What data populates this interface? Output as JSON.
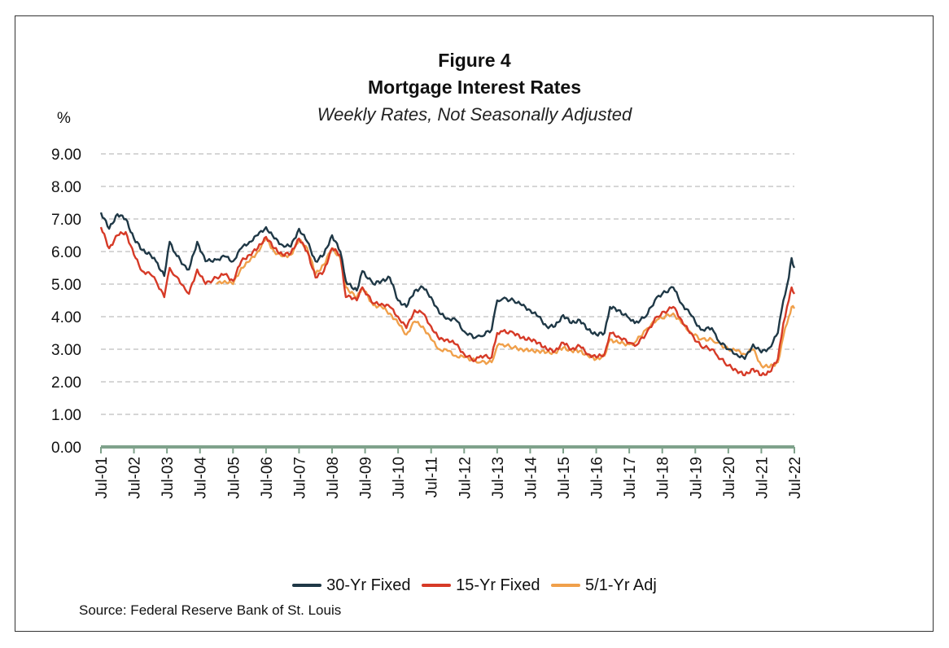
{
  "figure": {
    "number": "Figure 4",
    "title": "Mortgage Interest Rates",
    "subtitle": "Weekly Rates, Not Seasonally Adjusted",
    "unit": "%",
    "source": "Source: Federal Reserve Bank of St. Louis"
  },
  "colors": {
    "thirty": "#1f3846",
    "fifteen": "#d63a27",
    "arm": "#f0a04b",
    "grid": "#bdbdbd",
    "axis": "#7fa28b"
  },
  "chart_data": {
    "type": "line",
    "ylim": [
      0,
      9
    ],
    "yticks": [
      "0.00",
      "1.00",
      "2.00",
      "3.00",
      "4.00",
      "5.00",
      "6.00",
      "7.00",
      "8.00",
      "9.00"
    ],
    "xticks": [
      "Jul-01",
      "Jul-02",
      "Jul-03",
      "Jul-04",
      "Jul-05",
      "Jul-06",
      "Jul-07",
      "Jul-08",
      "Jul-09",
      "Jul-10",
      "Jul-11",
      "Jul-12",
      "Jul-13",
      "Jul-14",
      "Jul-15",
      "Jul-16",
      "Jul-17",
      "Jul-18",
      "Jul-19",
      "Jul-20",
      "Jul-21",
      "Jul-22"
    ],
    "grid": true,
    "legend_position": "bottom",
    "series": [
      {
        "name": "30-Yr Fixed",
        "color_key": "thirty",
        "x": [
          "2001-07",
          "2001-10",
          "2002-01",
          "2002-04",
          "2002-07",
          "2002-10",
          "2003-01",
          "2003-03",
          "2003-06",
          "2003-08",
          "2003-10",
          "2004-01",
          "2004-03",
          "2004-06",
          "2004-09",
          "2005-01",
          "2005-04",
          "2005-07",
          "2005-10",
          "2006-01",
          "2006-04",
          "2006-07",
          "2006-10",
          "2007-01",
          "2007-04",
          "2007-07",
          "2007-10",
          "2008-01",
          "2008-04",
          "2008-07",
          "2008-10",
          "2008-12",
          "2009-01",
          "2009-04",
          "2009-06",
          "2009-10",
          "2010-01",
          "2010-04",
          "2010-07",
          "2010-10",
          "2011-01",
          "2011-04",
          "2011-07",
          "2011-10",
          "2012-01",
          "2012-04",
          "2012-07",
          "2012-11",
          "2013-01",
          "2013-05",
          "2013-07",
          "2013-09",
          "2014-01",
          "2014-04",
          "2014-07",
          "2014-10",
          "2015-01",
          "2015-04",
          "2015-07",
          "2015-10",
          "2016-01",
          "2016-04",
          "2016-07",
          "2016-10",
          "2016-12",
          "2017-03",
          "2017-07",
          "2017-09",
          "2018-01",
          "2018-05",
          "2018-11",
          "2019-02",
          "2019-05",
          "2019-09",
          "2020-01",
          "2020-03",
          "2020-07",
          "2020-10",
          "2021-01",
          "2021-04",
          "2021-07",
          "2021-10",
          "2022-01",
          "2022-03",
          "2022-05",
          "2022-06",
          "2022-07"
        ],
        "values": [
          7.2,
          6.7,
          7.15,
          7.0,
          6.4,
          6.05,
          5.9,
          5.7,
          5.25,
          6.3,
          5.95,
          5.6,
          5.45,
          6.3,
          5.7,
          5.75,
          5.85,
          5.7,
          6.1,
          6.3,
          6.5,
          6.75,
          6.4,
          6.2,
          6.15,
          6.7,
          6.3,
          5.7,
          5.9,
          6.5,
          6.0,
          5.1,
          5.0,
          4.8,
          5.4,
          5.0,
          5.1,
          5.2,
          4.5,
          4.3,
          4.8,
          4.9,
          4.6,
          4.1,
          3.95,
          3.9,
          3.55,
          3.35,
          3.4,
          3.6,
          4.5,
          4.55,
          4.5,
          4.35,
          4.2,
          4.0,
          3.7,
          3.7,
          4.05,
          3.8,
          3.9,
          3.6,
          3.45,
          3.5,
          4.3,
          4.2,
          3.95,
          3.8,
          4.0,
          4.6,
          4.9,
          4.4,
          4.1,
          3.6,
          3.65,
          3.3,
          3.0,
          2.85,
          2.7,
          3.15,
          2.9,
          3.05,
          3.5,
          4.5,
          5.2,
          5.8,
          5.5
        ]
      },
      {
        "name": "15-Yr Fixed",
        "color_key": "fifteen",
        "x": [
          "2001-07",
          "2001-10",
          "2002-01",
          "2002-04",
          "2002-07",
          "2002-10",
          "2003-01",
          "2003-03",
          "2003-06",
          "2003-08",
          "2003-10",
          "2004-01",
          "2004-03",
          "2004-06",
          "2004-09",
          "2005-01",
          "2005-04",
          "2005-07",
          "2005-10",
          "2006-01",
          "2006-04",
          "2006-07",
          "2006-10",
          "2007-01",
          "2007-04",
          "2007-07",
          "2007-10",
          "2008-01",
          "2008-04",
          "2008-07",
          "2008-10",
          "2008-12",
          "2009-01",
          "2009-04",
          "2009-06",
          "2009-10",
          "2010-01",
          "2010-04",
          "2010-07",
          "2010-10",
          "2011-01",
          "2011-04",
          "2011-07",
          "2011-10",
          "2012-01",
          "2012-04",
          "2012-07",
          "2012-11",
          "2013-01",
          "2013-05",
          "2013-07",
          "2013-09",
          "2014-01",
          "2014-04",
          "2014-07",
          "2014-10",
          "2015-01",
          "2015-04",
          "2015-07",
          "2015-10",
          "2016-01",
          "2016-04",
          "2016-07",
          "2016-10",
          "2016-12",
          "2017-03",
          "2017-07",
          "2017-09",
          "2018-01",
          "2018-05",
          "2018-11",
          "2019-02",
          "2019-05",
          "2019-09",
          "2020-01",
          "2020-03",
          "2020-07",
          "2020-10",
          "2021-01",
          "2021-04",
          "2021-07",
          "2021-10",
          "2022-01",
          "2022-03",
          "2022-05",
          "2022-06",
          "2022-07"
        ],
        "values": [
          6.75,
          6.1,
          6.5,
          6.6,
          5.9,
          5.4,
          5.3,
          5.1,
          4.6,
          5.5,
          5.25,
          4.95,
          4.7,
          5.45,
          5.0,
          5.2,
          5.3,
          5.1,
          5.7,
          5.9,
          6.1,
          6.45,
          6.1,
          5.9,
          5.95,
          6.4,
          6.0,
          5.2,
          5.4,
          6.1,
          5.9,
          4.6,
          4.65,
          4.5,
          4.9,
          4.4,
          4.4,
          4.3,
          4.0,
          3.65,
          4.2,
          4.1,
          3.7,
          3.3,
          3.3,
          3.15,
          2.85,
          2.65,
          2.8,
          2.75,
          3.5,
          3.55,
          3.5,
          3.35,
          3.3,
          3.2,
          3.0,
          2.95,
          3.2,
          3.0,
          3.1,
          2.85,
          2.75,
          2.85,
          3.5,
          3.4,
          3.2,
          3.1,
          3.45,
          4.0,
          4.3,
          3.9,
          3.5,
          3.1,
          3.0,
          2.8,
          2.5,
          2.35,
          2.2,
          2.4,
          2.2,
          2.3,
          2.7,
          3.8,
          4.5,
          4.9,
          4.7
        ]
      },
      {
        "name": "5/1-Yr Adj",
        "color_key": "arm",
        "x": [
          "2005-01",
          "2005-04",
          "2005-07",
          "2005-10",
          "2006-01",
          "2006-04",
          "2006-07",
          "2006-10",
          "2007-01",
          "2007-04",
          "2007-07",
          "2007-10",
          "2008-01",
          "2008-04",
          "2008-07",
          "2008-10",
          "2008-12",
          "2009-01",
          "2009-04",
          "2009-06",
          "2009-10",
          "2010-01",
          "2010-04",
          "2010-07",
          "2010-10",
          "2011-01",
          "2011-04",
          "2011-07",
          "2011-10",
          "2012-01",
          "2012-04",
          "2012-07",
          "2012-11",
          "2013-01",
          "2013-05",
          "2013-07",
          "2013-09",
          "2014-01",
          "2014-04",
          "2014-07",
          "2014-10",
          "2015-01",
          "2015-04",
          "2015-07",
          "2015-10",
          "2016-01",
          "2016-04",
          "2016-07",
          "2016-10",
          "2016-12",
          "2017-03",
          "2017-07",
          "2017-09",
          "2018-01",
          "2018-05",
          "2018-11",
          "2019-02",
          "2019-05",
          "2019-09",
          "2020-01",
          "2020-03",
          "2020-07",
          "2020-10",
          "2021-01",
          "2021-04",
          "2021-07",
          "2021-10",
          "2022-01",
          "2022-03",
          "2022-05",
          "2022-06",
          "2022-07"
        ],
        "values": [
          5.0,
          5.1,
          5.0,
          5.5,
          5.7,
          6.0,
          6.4,
          6.0,
          5.85,
          5.9,
          6.35,
          6.1,
          5.3,
          5.6,
          6.1,
          5.8,
          4.9,
          4.8,
          4.6,
          4.9,
          4.35,
          4.3,
          4.1,
          3.8,
          3.45,
          3.85,
          3.7,
          3.3,
          3.0,
          2.95,
          2.8,
          2.75,
          2.65,
          2.6,
          2.6,
          3.1,
          3.15,
          3.05,
          3.0,
          2.95,
          2.95,
          2.9,
          2.9,
          3.05,
          2.95,
          2.95,
          2.8,
          2.7,
          2.8,
          3.3,
          3.2,
          3.15,
          3.2,
          3.6,
          3.9,
          4.1,
          3.8,
          3.55,
          3.3,
          3.3,
          3.2,
          3.0,
          2.95,
          2.85,
          3.0,
          2.5,
          2.45,
          2.6,
          3.4,
          4.0,
          4.3,
          4.25
        ]
      }
    ]
  }
}
